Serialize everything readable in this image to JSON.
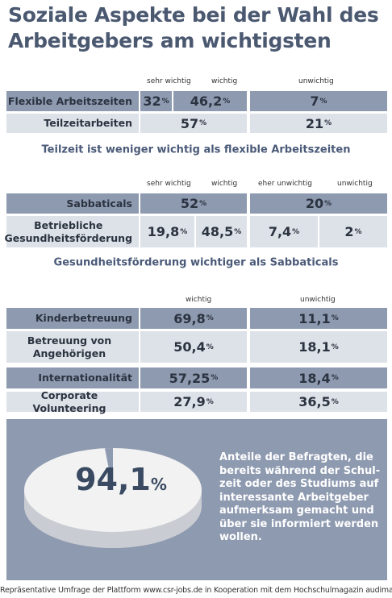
{
  "title": [
    "Soziale Aspekte bei der Wahl des",
    "Arbeitgebers am wichtigsten"
  ],
  "sections": [
    {
      "headers": [
        "sehr wichtig",
        "wichtig",
        "unwichtig"
      ],
      "rows": [
        {
          "label": "Flexible Arbeitszeiten",
          "cells": [
            {
              "num": "32",
              "unit": "%"
            },
            {
              "num": "46,2",
              "unit": "%"
            },
            {
              "num": "7",
              "unit": "%"
            }
          ]
        },
        {
          "label": "Teilzeitarbeiten",
          "cells": [
            {
              "num": "57",
              "unit": "%"
            },
            {
              "num": "21",
              "unit": "%"
            }
          ]
        }
      ],
      "note": "Teilzeit ist weniger wichtig als flexible Arbeitszeiten"
    },
    {
      "headers": [
        "sehr wichtig",
        "wichtig",
        "eher unwichtig",
        "unwichtig"
      ],
      "rows": [
        {
          "label": "Sabbaticals",
          "cells": [
            {
              "num": "52",
              "unit": "%"
            },
            {
              "num": "20",
              "unit": "%"
            }
          ]
        },
        {
          "label": "Betriebliche Gesundheitsförderung",
          "cells": [
            {
              "num": "19,8",
              "unit": "%"
            },
            {
              "num": "48,5",
              "unit": "%"
            },
            {
              "num": "7,4",
              "unit": "%"
            },
            {
              "num": "2",
              "unit": "%"
            }
          ]
        }
      ],
      "note": "Gesundheitsförderung wichtiger als Sabbaticals"
    },
    {
      "headers": [
        "wichtig",
        "unwichtig"
      ],
      "rows": [
        {
          "label": "Kinderbetreuung",
          "cells": [
            {
              "num": "69,8",
              "unit": "%"
            },
            {
              "num": "11,1",
              "unit": "%"
            }
          ]
        },
        {
          "label": "Betreuung von Angehörigen",
          "cells": [
            {
              "num": "50,4",
              "unit": "%"
            },
            {
              "num": "18,1",
              "unit": "%"
            }
          ]
        },
        {
          "label": "Internationalität",
          "cells": [
            {
              "num": "57,25",
              "unit": "%"
            },
            {
              "num": "18,4",
              "unit": "%"
            }
          ]
        },
        {
          "label": "Corporate Volunteering",
          "cells": [
            {
              "num": "27,9",
              "unit": "%"
            },
            {
              "num": "36,5",
              "unit": "%"
            }
          ]
        }
      ]
    }
  ],
  "highlight": {
    "num": "94,1",
    "unit": "%",
    "lines": [
      "Anteile der Befragten, die",
      "bereits während der Schul-",
      "zeit oder des Studiums auf",
      "interessante Arbeitgeber",
      "aufmerksam gemacht und",
      "über sie informiert werden",
      "wollen."
    ]
  },
  "footer": "Repräsentative Umfrage der Plattform www.csr-jobs.de in Kooperation mit dem Hochschulmagazin audimax."
}
